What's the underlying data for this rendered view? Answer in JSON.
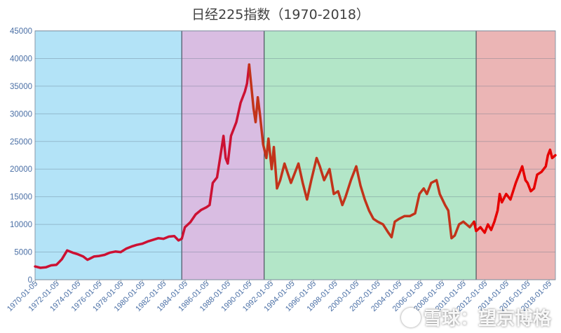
{
  "chart_data": {
    "type": "line",
    "title": "日经225指数（1970-2018）",
    "xlabel": "",
    "ylabel": "",
    "ylim": [
      0,
      45000
    ],
    "yticks": [
      0,
      5000,
      10000,
      15000,
      20000,
      25000,
      30000,
      35000,
      40000,
      45000
    ],
    "xlim": [
      1970.0,
      2018.6
    ],
    "xtick_labels": [
      "1970-01-05",
      "1972-01-05",
      "1974-01-05",
      "1976-01-05",
      "1978-01-05",
      "1980-01-05",
      "1982-01-05",
      "1984-01-05",
      "1986-01-05",
      "1988-01-05",
      "1990-01-05",
      "1992-01-05",
      "1994-01-05",
      "1996-01-05",
      "1998-01-05",
      "2000-01-05",
      "2002-01-05",
      "2004-01-05",
      "2006-01-05",
      "2008-01-05",
      "2010-01-05",
      "2012-01-05",
      "2014-01-05",
      "2016-01-05",
      "2018-01-05"
    ],
    "grid": true,
    "legend": "none",
    "regions": [
      {
        "start": 1970.0,
        "end": 1983.7,
        "color": "#b3e3f7"
      },
      {
        "start": 1983.7,
        "end": 1991.4,
        "color": "#d9bde2"
      },
      {
        "start": 1991.4,
        "end": 2011.2,
        "color": "#b3e6c8"
      },
      {
        "start": 2011.2,
        "end": 2018.6,
        "color": "#ebb5b5"
      }
    ],
    "series": [
      {
        "color": "#cc1133",
        "points": [
          [
            1970.0,
            2400
          ],
          [
            1970.5,
            2150
          ],
          [
            1971.0,
            2250
          ],
          [
            1971.5,
            2600
          ],
          [
            1972.0,
            2700
          ],
          [
            1972.5,
            3700
          ],
          [
            1973.0,
            5300
          ],
          [
            1973.5,
            4900
          ],
          [
            1974.0,
            4600
          ],
          [
            1974.5,
            4200
          ],
          [
            1974.9,
            3600
          ],
          [
            1975.5,
            4200
          ],
          [
            1976.0,
            4300
          ],
          [
            1976.5,
            4500
          ],
          [
            1977.0,
            4900
          ],
          [
            1977.5,
            5100
          ],
          [
            1978.0,
            5000
          ],
          [
            1978.5,
            5600
          ],
          [
            1979.0,
            6000
          ],
          [
            1979.5,
            6300
          ],
          [
            1980.0,
            6500
          ],
          [
            1980.5,
            6900
          ],
          [
            1981.0,
            7200
          ],
          [
            1981.5,
            7500
          ],
          [
            1982.0,
            7400
          ],
          [
            1982.5,
            7800
          ],
          [
            1983.0,
            7900
          ],
          [
            1983.4,
            7100
          ],
          [
            1983.7,
            7400
          ],
          [
            1984.0,
            9500
          ],
          [
            1984.5,
            10400
          ],
          [
            1985.0,
            11800
          ],
          [
            1985.5,
            12600
          ],
          [
            1986.0,
            13100
          ],
          [
            1986.3,
            13500
          ],
          [
            1986.6,
            17500
          ],
          [
            1987.0,
            18500
          ],
          [
            1987.4,
            23500
          ],
          [
            1987.6,
            26000
          ],
          [
            1987.8,
            22000
          ],
          [
            1988.0,
            21000
          ],
          [
            1988.3,
            26000
          ],
          [
            1988.8,
            28500
          ],
          [
            1989.2,
            32000
          ],
          [
            1989.6,
            34000
          ],
          [
            1989.8,
            35500
          ],
          [
            1990.0,
            38900
          ]
        ]
      },
      {
        "color": "#c2331a",
        "points": [
          [
            1990.0,
            38900
          ],
          [
            1990.2,
            35000
          ],
          [
            1990.4,
            31000
          ],
          [
            1990.6,
            28500
          ],
          [
            1990.8,
            33000
          ],
          [
            1991.0,
            30000
          ],
          [
            1991.3,
            24500
          ],
          [
            1991.6,
            22000
          ],
          [
            1991.8,
            25500
          ],
          [
            1992.1,
            20000
          ],
          [
            1992.3,
            24000
          ],
          [
            1992.6,
            16500
          ],
          [
            1992.9,
            18000
          ],
          [
            1993.3,
            21000
          ],
          [
            1993.9,
            17500
          ],
          [
            1994.2,
            19000
          ],
          [
            1994.6,
            21000
          ],
          [
            1995.0,
            17500
          ],
          [
            1995.4,
            14500
          ],
          [
            1995.8,
            18000
          ],
          [
            1996.3,
            22000
          ],
          [
            1996.6,
            20500
          ],
          [
            1997.0,
            18000
          ],
          [
            1997.5,
            20000
          ],
          [
            1997.9,
            15500
          ],
          [
            1998.3,
            16000
          ],
          [
            1998.7,
            13500
          ],
          [
            1999.0,
            15000
          ],
          [
            1999.5,
            18000
          ],
          [
            2000.0,
            20500
          ],
          [
            2000.4,
            17000
          ],
          [
            2000.8,
            14500
          ],
          [
            2001.2,
            12500
          ],
          [
            2001.6,
            11000
          ],
          [
            2002.0,
            10500
          ],
          [
            2002.5,
            10000
          ],
          [
            2003.0,
            8500
          ],
          [
            2003.3,
            7700
          ],
          [
            2003.6,
            10500
          ],
          [
            2004.0,
            11000
          ],
          [
            2004.5,
            11500
          ],
          [
            2005.0,
            11500
          ],
          [
            2005.5,
            12000
          ],
          [
            2005.9,
            15500
          ],
          [
            2006.3,
            16500
          ],
          [
            2006.6,
            15500
          ],
          [
            2007.0,
            17500
          ],
          [
            2007.5,
            18000
          ],
          [
            2007.8,
            15500
          ],
          [
            2008.3,
            13500
          ],
          [
            2008.6,
            12500
          ],
          [
            2008.9,
            7500
          ],
          [
            2009.2,
            8000
          ],
          [
            2009.6,
            10000
          ],
          [
            2010.0,
            10500
          ],
          [
            2010.6,
            9500
          ],
          [
            2011.0,
            10500
          ]
        ]
      },
      {
        "color": "#e60000",
        "points": [
          [
            2011.0,
            10500
          ],
          [
            2011.2,
            8800
          ],
          [
            2011.6,
            9500
          ],
          [
            2012.0,
            8500
          ],
          [
            2012.3,
            10000
          ],
          [
            2012.6,
            9000
          ],
          [
            2012.9,
            10500
          ],
          [
            2013.2,
            12500
          ],
          [
            2013.4,
            15500
          ],
          [
            2013.6,
            14000
          ],
          [
            2014.0,
            15500
          ],
          [
            2014.4,
            14500
          ],
          [
            2014.9,
            17500
          ],
          [
            2015.3,
            19500
          ],
          [
            2015.5,
            20500
          ],
          [
            2015.8,
            18000
          ],
          [
            2016.0,
            17500
          ],
          [
            2016.3,
            16000
          ],
          [
            2016.6,
            16500
          ],
          [
            2016.9,
            19000
          ],
          [
            2017.3,
            19500
          ],
          [
            2017.7,
            20500
          ],
          [
            2017.9,
            22500
          ],
          [
            2018.1,
            23500
          ],
          [
            2018.3,
            22000
          ],
          [
            2018.6,
            22500
          ]
        ]
      }
    ]
  },
  "watermark": {
    "text": "雪球：望京博格"
  }
}
